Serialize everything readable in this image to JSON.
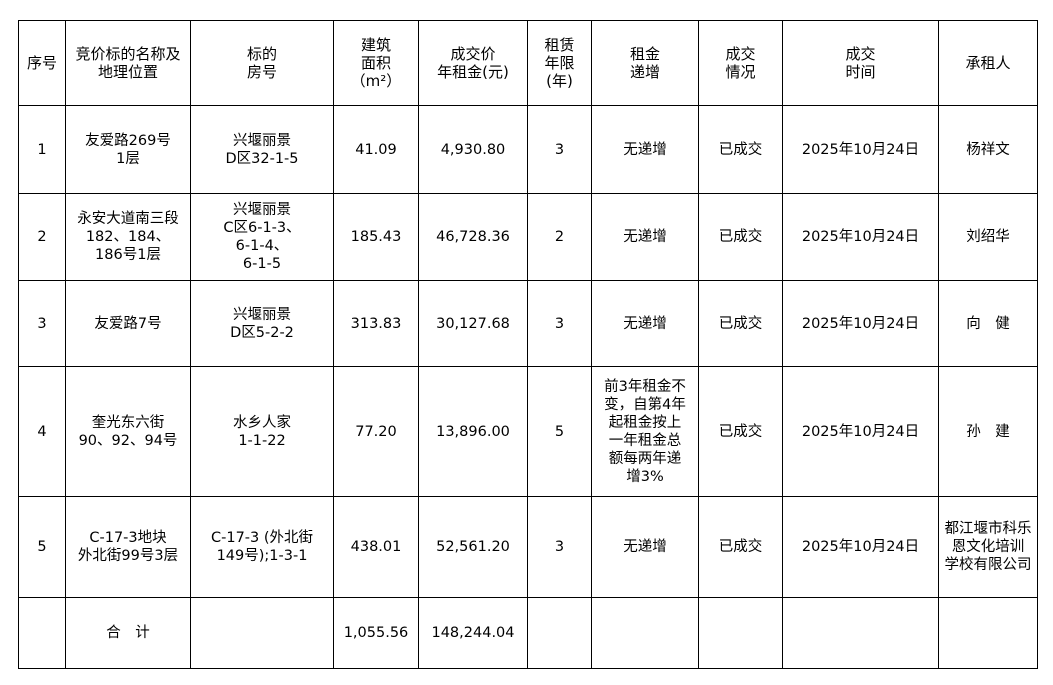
{
  "headers": [
    "序号",
    "竞价标的名称及\n地理位置",
    "标的\n房号",
    "建筑\n面积\n（m²）",
    "成交价\n年租金(元)",
    "租赁\n年限\n(年)",
    "租金\n递增",
    "成交\n情况",
    "成交\n时间",
    "承租人"
  ],
  "rows": [
    [
      "1",
      "友爱路269号\n1层",
      "兴堰丽景\nD区32-1-5",
      "41.09",
      "4,930.80",
      "3",
      "无递增",
      "已成交",
      "2025年10月24日",
      "杨祥文"
    ],
    [
      "2",
      "永安大道南三段\n182、184、\n186号1层",
      "兴堰丽景\nC区6-1-3、\n6-1-4、\n6-1-5",
      "185.43",
      "46,728.36",
      "2",
      "无递增",
      "已成交",
      "2025年10月24日",
      "刘绍华"
    ],
    [
      "3",
      "友爱路7号",
      "兴堰丽景\nD区5-2-2",
      "313.83",
      "30,127.68",
      "3",
      "无递增",
      "已成交",
      "2025年10月24日",
      "向　健"
    ],
    [
      "4",
      "奎光东六街\n90、92、94号",
      "水乡人家\n1-1-22",
      "77.20",
      "13,896.00",
      "5",
      "前3年租金不\n变，自第4年\n起租金按上\n一年租金总\n额每两年递\n增3%",
      "已成交",
      "2025年10月24日",
      "孙　建"
    ],
    [
      "5",
      "C-17-3地块\n外北街99号3层",
      "C-17-3 (外北街\n149号);1-3-1",
      "438.01",
      "52,561.20",
      "3",
      "无递增",
      "已成交",
      "2025年10月24日",
      "都江堰市科乐\n恩文化培训\n学校有限公司"
    ]
  ],
  "total": {
    "label": "合　计",
    "area": "1,055.56",
    "rent": "148,244.04"
  }
}
